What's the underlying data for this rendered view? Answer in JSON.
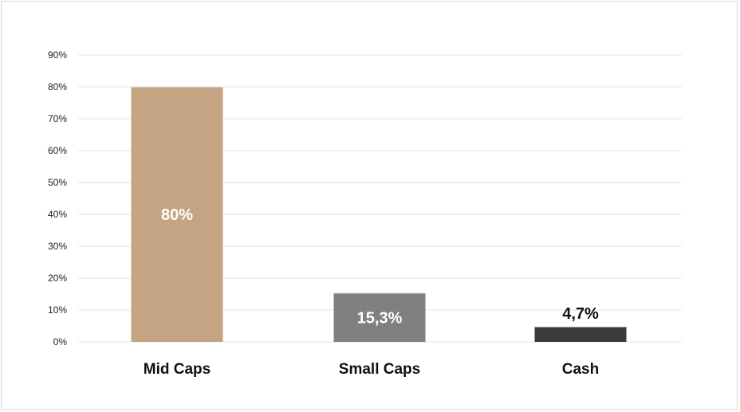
{
  "chart_data": {
    "type": "bar",
    "title": "",
    "xlabel": "",
    "ylabel": "",
    "categories": [
      "Mid Caps",
      "Small Caps",
      "Cash"
    ],
    "values": [
      80,
      15.3,
      4.7
    ],
    "data_labels": [
      "80%",
      "15,3%",
      "4,7%"
    ],
    "colors": [
      "#c4a482",
      "#808080",
      "#3a3a3a"
    ],
    "data_label_colors": [
      "#ffffff",
      "#ffffff",
      "#111111"
    ],
    "data_label_placement": [
      "inside",
      "inside",
      "above"
    ],
    "ylim": [
      0,
      90
    ],
    "yticks": [
      0,
      10,
      20,
      30,
      40,
      50,
      60,
      70,
      80,
      90
    ],
    "ytick_labels": [
      "0%",
      "10%",
      "20%",
      "30%",
      "40%",
      "50%",
      "60%",
      "70%",
      "80%",
      "90%"
    ],
    "grid": true,
    "legend": false
  }
}
